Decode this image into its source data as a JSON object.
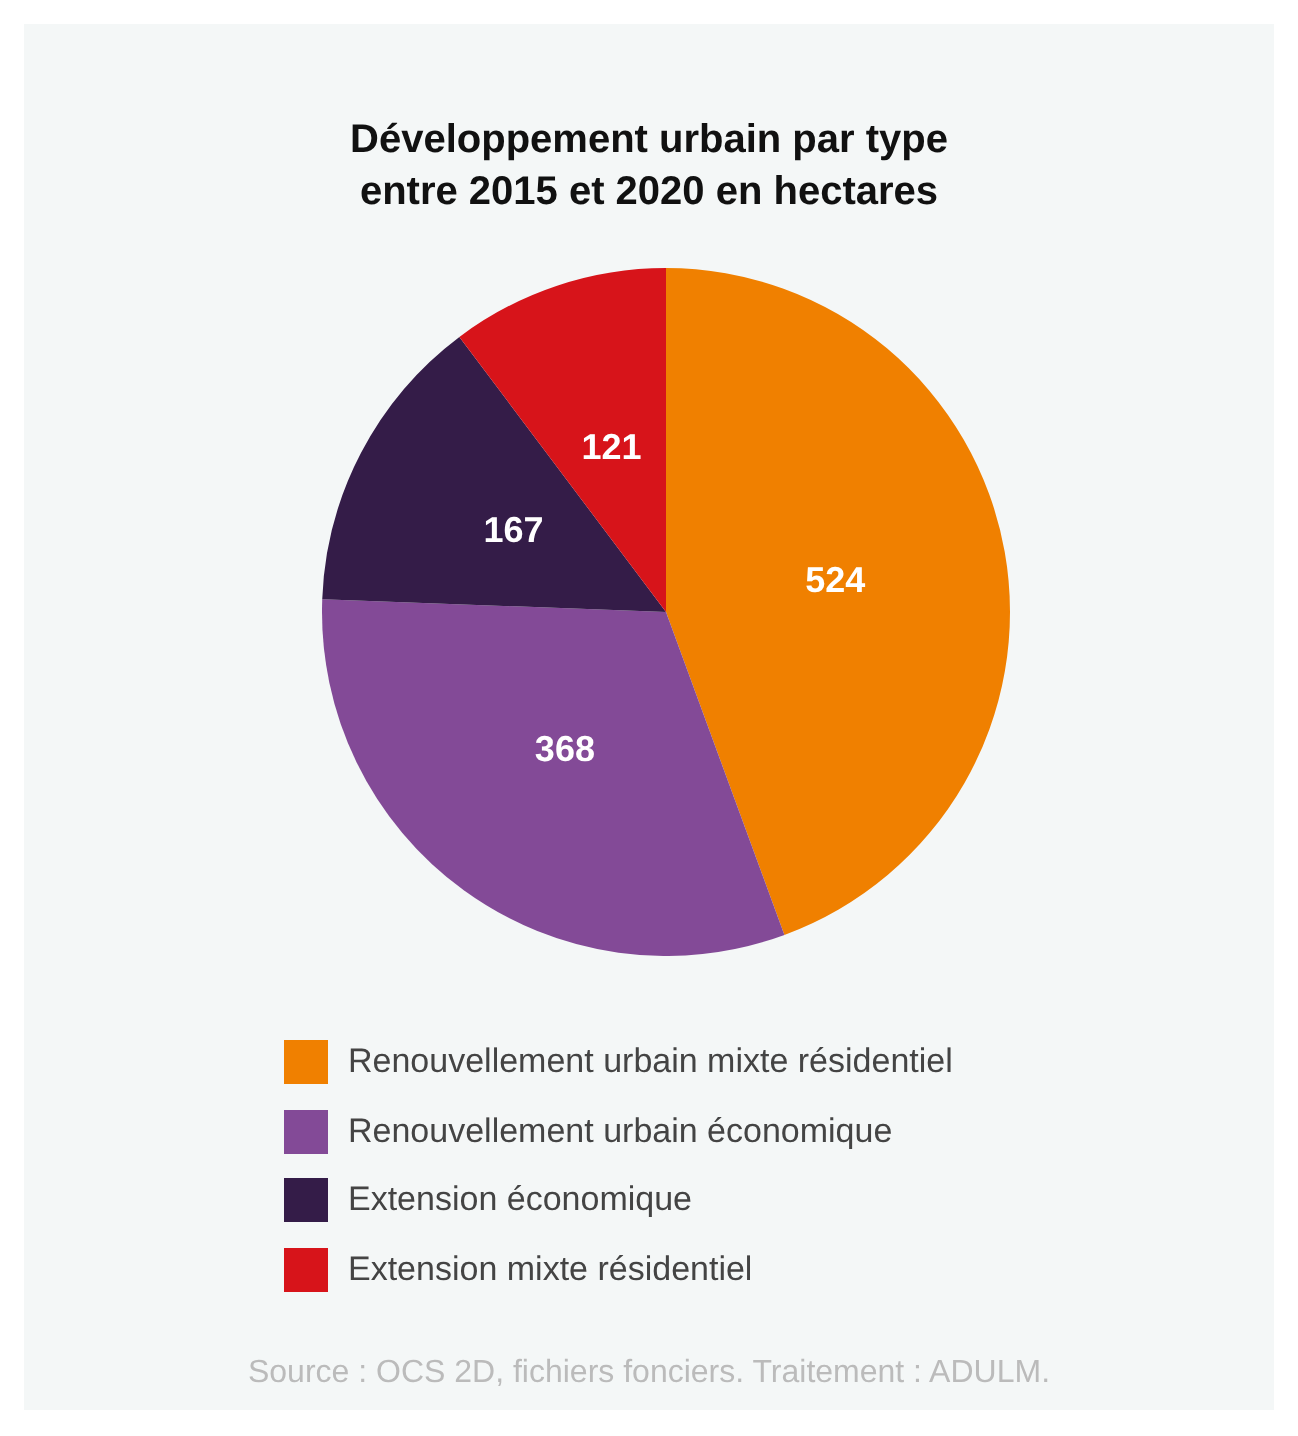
{
  "chart_data": {
    "type": "pie",
    "title": "Développement urbain par type\nentre 2015 et 2020 en hectares",
    "categories": [
      "Renouvellement urbain mixte résidentiel",
      "Renouvellement urbain économique",
      "Extension économique",
      "Extension mixte résidentiel"
    ],
    "values": [
      524,
      368,
      167,
      121
    ],
    "colors": [
      "#f08000",
      "#834a97",
      "#341c48",
      "#d7141a"
    ],
    "data_labels": true,
    "legend": "bottom",
    "annotations": [
      "Source : OCS 2D, fichiers fonciers. Traitement : ADULM."
    ]
  }
}
